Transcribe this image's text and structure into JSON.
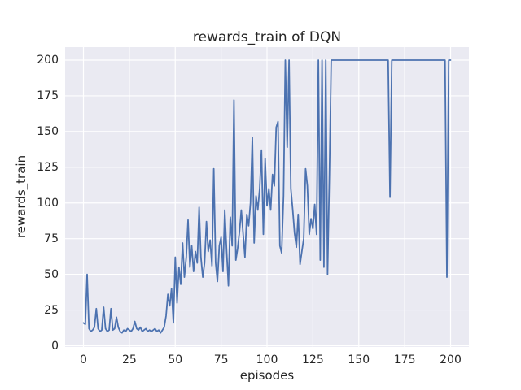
{
  "colors": {
    "figure_bg": "#ffffff",
    "plot_bg": "#eaeaf2",
    "grid": "#ffffff",
    "text": "#262626",
    "line": "#4c72b0"
  },
  "chart_data": {
    "type": "line",
    "title": "rewards_train of DQN",
    "xlabel": "episodes",
    "ylabel": "rewards_train",
    "grid": true,
    "legend_position": "none",
    "x_ticks": [
      0,
      25,
      50,
      75,
      100,
      125,
      150,
      175,
      200
    ],
    "y_ticks": [
      0,
      25,
      50,
      75,
      100,
      125,
      150,
      175,
      200
    ],
    "xlim": [
      -10,
      210
    ],
    "ylim": [
      -1,
      209
    ],
    "x_start": 0,
    "x_step": 1,
    "series": [
      {
        "name": "rewards_train",
        "color": "#4c72b0",
        "values": [
          16,
          15,
          50,
          12,
          10,
          11,
          13,
          26,
          12,
          10,
          11,
          27,
          12,
          10,
          11,
          26,
          11,
          12,
          20,
          13,
          10,
          9,
          11,
          10,
          12,
          11,
          10,
          12,
          17,
          12,
          11,
          13,
          10,
          11,
          12,
          10,
          11,
          10,
          11,
          12,
          10,
          11,
          9,
          11,
          13,
          21,
          36,
          28,
          40,
          16,
          62,
          30,
          55,
          43,
          72,
          48,
          62,
          88,
          55,
          70,
          52,
          66,
          58,
          97,
          62,
          48,
          58,
          87,
          66,
          74,
          56,
          124,
          58,
          45,
          70,
          76,
          52,
          95,
          66,
          42,
          90,
          70,
          172,
          60,
          68,
          80,
          95,
          78,
          62,
          92,
          84,
          100,
          146,
          72,
          105,
          95,
          110,
          137,
          78,
          131,
          98,
          110,
          95,
          120,
          112,
          153,
          157,
          70,
          65,
          105,
          200,
          139,
          200,
          110,
          95,
          79,
          69,
          92,
          57,
          66,
          75,
          124,
          112,
          78,
          89,
          82,
          99,
          78,
          200,
          60,
          200,
          55,
          200,
          50,
          120,
          200,
          200,
          200,
          200,
          200,
          200,
          200,
          200,
          200,
          200,
          200,
          200,
          200,
          200,
          200,
          200,
          200,
          200,
          200,
          200,
          200,
          200,
          200,
          200,
          200,
          200,
          200,
          200,
          200,
          200,
          200,
          200,
          104,
          200,
          200,
          200,
          200,
          200,
          200,
          200,
          200,
          200,
          200,
          200,
          200,
          200,
          200,
          200,
          200,
          200,
          200,
          200,
          200,
          200,
          200,
          200,
          200,
          200,
          200,
          200,
          200,
          200,
          200,
          48,
          200,
          200
        ]
      }
    ]
  }
}
